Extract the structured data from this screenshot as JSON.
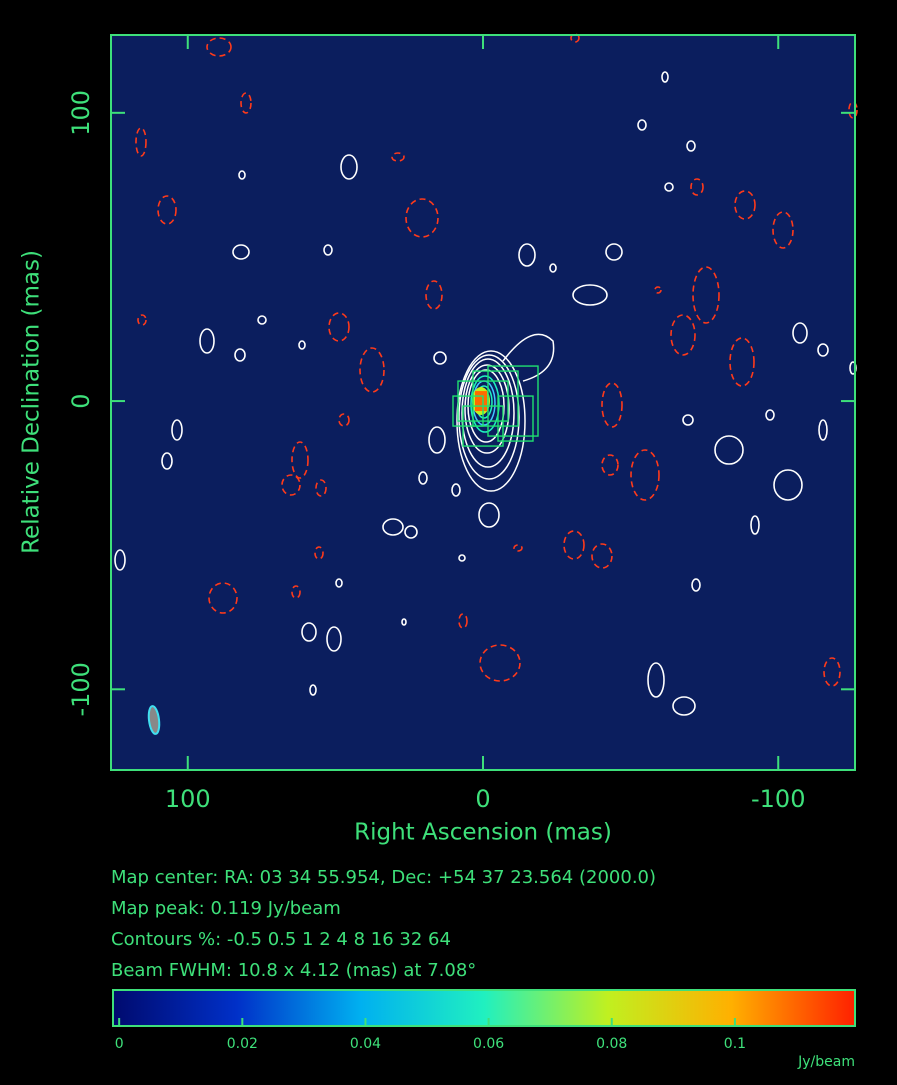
{
  "chart_data": {
    "type": "image",
    "xlabel": "Right Ascension  (mas)",
    "ylabel": "Relative Declination  (mas)",
    "xlim": [
      126,
      -126
    ],
    "ylim": [
      -128,
      127
    ],
    "xticks": [
      100,
      0,
      -100
    ],
    "yticks": [
      -100,
      0,
      100
    ],
    "annotations": [
      "Map center:  RA: 03 34 55.954,  Dec: +54 37 23.564 (2000.0)",
      "Map peak: 0.119 Jy/beam",
      "Contours %: -0.5 0.5 1 2 4 8 16 32 64",
      "Beam FWHM: 10.8 x 4.12 (mas) at 7.08°"
    ],
    "colorbar": {
      "label": "Jy/beam",
      "lim": [
        -0.001,
        0.1195
      ],
      "ticks": [
        0,
        0.02,
        0.04,
        0.06,
        0.08,
        0.1
      ],
      "colormap": [
        "#000a6e",
        "#0030c8",
        "#00b0f0",
        "#20f0c0",
        "#c0f020",
        "#ffb000",
        "#ff2000"
      ]
    }
  }
}
